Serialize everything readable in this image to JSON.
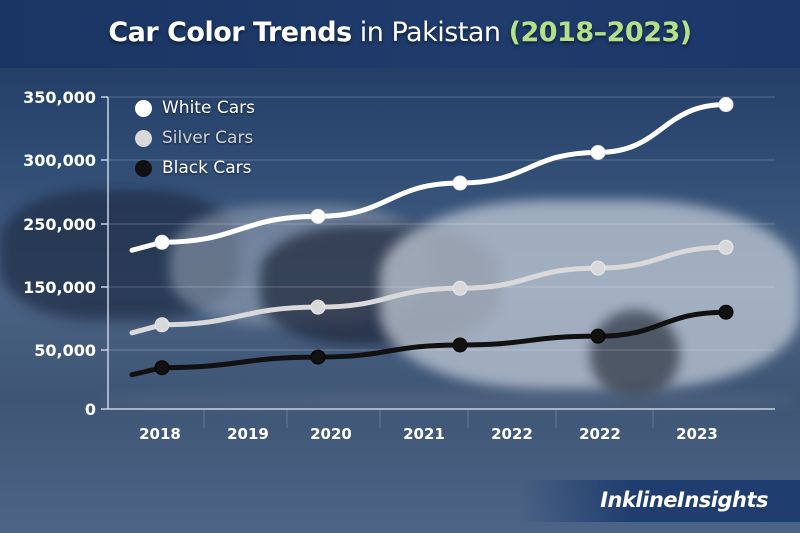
{
  "title": {
    "bold": "Car Color Trends",
    "rest": " in Pakistan ",
    "years": "(2018–2023)"
  },
  "brand": "InklineInsights",
  "colors": {
    "white": "#ffffff",
    "silver": "#d9d9dc",
    "black": "#111111",
    "title_accent": "#b5e08a"
  },
  "chart_data": {
    "type": "line",
    "title": "Car Color Trends in Pakistan (2018–2023)",
    "xlabel": "",
    "ylabel": "",
    "x_tick_labels": [
      "2018",
      "2019",
      "2020",
      "2021",
      "2022",
      "2022",
      "2023"
    ],
    "y_tick_labels": [
      "0",
      "50,000",
      "150,000",
      "250,000",
      "300,000",
      "350,000"
    ],
    "y_tick_values": [
      0,
      50000,
      150000,
      250000,
      300000,
      350000
    ],
    "ylim": [
      0,
      350000
    ],
    "grid": true,
    "legend_placement": "top-left",
    "point_x": [
      "2018",
      "2020",
      "2021",
      "2022",
      "2023"
    ],
    "series": [
      {
        "name": "White Cars",
        "color": "#ffffff",
        "values": [
          221000,
          256000,
          282000,
          306000,
          344000
        ]
      },
      {
        "name": "Silver Cars",
        "color": "#d9d9dc",
        "values": [
          90000,
          118000,
          148000,
          180000,
          213000
        ]
      },
      {
        "name": "Black Cars",
        "color": "#111111",
        "values": [
          35000,
          44000,
          58000,
          72000,
          110000
        ]
      }
    ]
  }
}
